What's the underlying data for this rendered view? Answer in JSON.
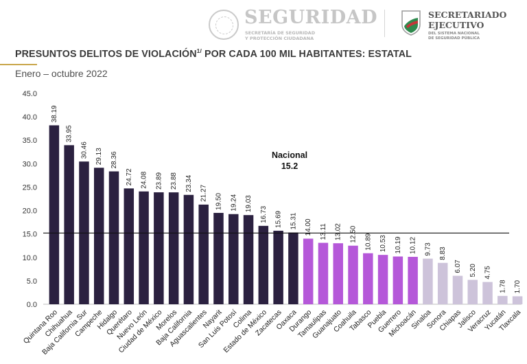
{
  "header": {
    "seguridad": "SEGURIDAD",
    "seguridad_sub_1": "SECRETARÍA DE SEGURIDAD",
    "seguridad_sub_2": "Y PROTECCIÓN CIUDADANA",
    "secretariado_1": "SECRETARIADO",
    "secretariado_2": "EJECUTIVO",
    "secretariado_sub_1": "DEL SISTEMA NACIONAL",
    "secretariado_sub_2": "DE SEGURIDAD PÚBLICA"
  },
  "title": "PRESUNTOS DELITOS DE VIOLACIÓN",
  "title_sup": "1/",
  "title_rest": " POR CADA 100 MIL HABITANTES: ESTATAL",
  "subtitle": "Enero – octubre 2022",
  "colors": {
    "above": "#2b2140",
    "mid": "#b558d9",
    "low": "#cdc3da",
    "rule": "#c9a64b"
  },
  "chart_data": {
    "type": "bar",
    "title": "PRESUNTOS DELITOS DE VIOLACIÓN1/ POR CADA 100 MIL HABITANTES: ESTATAL",
    "subtitle": "Enero – octubre 2022",
    "ylim": [
      0,
      45
    ],
    "yticks": [
      "0.0",
      "5.0",
      "10.0",
      "15.0",
      "20.0",
      "25.0",
      "30.0",
      "35.0",
      "40.0",
      "45.0"
    ],
    "reference_line": {
      "label_1": "Nacional",
      "label_2": "15.2",
      "value": 15.2
    },
    "categories": [
      "Quintana Roo",
      "Chihuahua",
      "Baja California Sur",
      "Campeche",
      "Hidalgo",
      "Querétaro",
      "Nuevo León",
      "Ciudad de México",
      "Morelos",
      "Baja California",
      "Aguascalientes",
      "Nayarit",
      "San Luis Potosí",
      "Colima",
      "Estado de México",
      "Zacatecas",
      "Oaxaca",
      "Durango",
      "Tamaulipas",
      "Guanajuato",
      "Coahuila",
      "Tabasco",
      "Puebla",
      "Guerrero",
      "Michoacán",
      "Sinaloa",
      "Sonora",
      "Chiapas",
      "Jalisco",
      "Veracruz",
      "Yucatán",
      "Tlaxcala"
    ],
    "values": [
      38.19,
      33.95,
      30.46,
      29.13,
      28.36,
      24.72,
      24.08,
      23.89,
      23.88,
      23.34,
      21.27,
      19.5,
      19.24,
      19.03,
      16.73,
      15.69,
      15.31,
      14.0,
      13.11,
      13.02,
      12.5,
      10.89,
      10.53,
      10.19,
      10.12,
      9.73,
      8.83,
      6.07,
      5.2,
      4.75,
      1.78,
      1.7
    ],
    "labels": [
      "38.19",
      "33.95",
      "30.46",
      "29.13",
      "28.36",
      "24.72",
      "24.08",
      "23.89",
      "23.88",
      "23.34",
      "21.27",
      "19.50",
      "19.24",
      "19.03",
      "16.73",
      "15.69",
      "15.31",
      "14.00",
      "13.11",
      "13.02",
      "12.50",
      "10.89",
      "10.53",
      "10.19",
      "10.12",
      "9.73",
      "8.83",
      "6.07",
      "5.20",
      "4.75",
      "1.78",
      "1.70"
    ]
  }
}
